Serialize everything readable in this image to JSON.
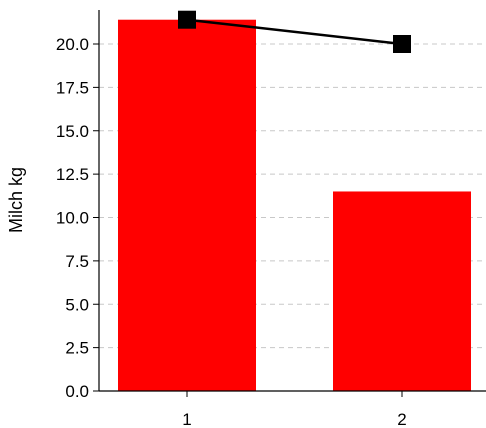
{
  "chart_data": {
    "type": "bar",
    "categories": [
      "1",
      "2"
    ],
    "series": [
      {
        "type": "bar",
        "values": [
          21.4,
          11.5
        ],
        "color": "#ff0000"
      },
      {
        "type": "line",
        "values": [
          21.4,
          20.0
        ],
        "color": "#000000",
        "marker": "square"
      }
    ],
    "xlabel": "",
    "ylabel": "Milch kg",
    "ylim": [
      0,
      22
    ],
    "yticks": [
      "0.0",
      "2.5",
      "5.0",
      "7.5",
      "10.0",
      "12.5",
      "15.0",
      "17.5",
      "20.0"
    ],
    "grid": "horizontal dashed",
    "legend": "none"
  }
}
